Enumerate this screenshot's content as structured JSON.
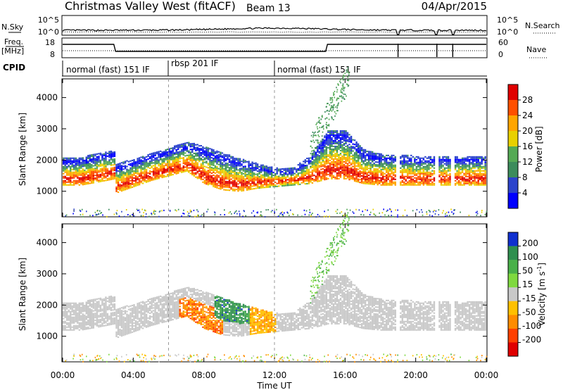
{
  "header": {
    "title": "Christmas Valley West (fitACF)",
    "beam": "Beam 13",
    "date": "04/Apr/2015"
  },
  "strips": {
    "nsky_label": "N.Sky",
    "nsky_ticks": [
      "10^5",
      "10^0"
    ],
    "nsearch_label": "N.Search",
    "nsearch_ticks": [
      "10^5",
      "10^0"
    ],
    "freq_label": "Freq.",
    "freq_unit": "[MHz]",
    "freq_ticks": [
      "18",
      "8"
    ],
    "nave_label": "Nave",
    "nave_ticks": [
      "60",
      "0"
    ],
    "cpid_label": "CPID",
    "cpid_segments": [
      {
        "label": "normal (fast) 151 IF",
        "start_h": 0,
        "end_h": 6
      },
      {
        "label": "rbsp 201 IF",
        "start_h": 6,
        "end_h": 12
      },
      {
        "label": "normal (fast) 151 IF",
        "start_h": 12,
        "end_h": 24
      }
    ]
  },
  "chart_data": [
    {
      "type": "heatmap",
      "quantity": "power",
      "xlabel": "Time UT",
      "ylabel": "Slant Range [km]",
      "xlim": [
        0,
        24
      ],
      "ylim": [
        180,
        4600
      ],
      "x_ticks": [
        "00:00",
        "04:00",
        "08:00",
        "12:00",
        "16:00",
        "20:00",
        "00:00"
      ],
      "y_ticks": [
        1000,
        2000,
        3000,
        4000
      ],
      "colorbar": {
        "label": "Power [dB]",
        "ticks": [
          4,
          8,
          12,
          16,
          20,
          24,
          28
        ],
        "colors": [
          "#0000ff",
          "#2c44cc",
          "#3c8c5c",
          "#55aa55",
          "#e8d000",
          "#ffa500",
          "#ff5000",
          "#e00000"
        ]
      },
      "echo_band": [
        {
          "t": 0.0,
          "lo": 1300,
          "hi": 1950
        },
        {
          "t": 1.0,
          "lo": 1300,
          "hi": 1950
        },
        {
          "t": 2.0,
          "lo": 1400,
          "hi": 2100
        },
        {
          "t": 2.9,
          "lo": 1500,
          "hi": 2200
        },
        {
          "t": 3.0,
          "lo": 1050,
          "hi": 1750
        },
        {
          "t": 4.0,
          "lo": 1250,
          "hi": 1900
        },
        {
          "t": 5.0,
          "lo": 1450,
          "hi": 2100
        },
        {
          "t": 6.0,
          "lo": 1600,
          "hi": 2250
        },
        {
          "t": 7.0,
          "lo": 1750,
          "hi": 2450
        },
        {
          "t": 8.0,
          "lo": 1350,
          "hi": 2300
        },
        {
          "t": 9.0,
          "lo": 1150,
          "hi": 2100
        },
        {
          "t": 10.0,
          "lo": 1100,
          "hi": 1900
        },
        {
          "t": 11.0,
          "lo": 1200,
          "hi": 1750
        },
        {
          "t": 12.0,
          "lo": 1250,
          "hi": 1600
        },
        {
          "t": 13.0,
          "lo": 1300,
          "hi": 1600
        },
        {
          "t": 14.0,
          "lo": 1350,
          "hi": 2000
        },
        {
          "t": 15.0,
          "lo": 1500,
          "hi": 2800
        },
        {
          "t": 16.0,
          "lo": 1500,
          "hi": 2800
        },
        {
          "t": 17.0,
          "lo": 1350,
          "hi": 2200
        },
        {
          "t": 18.0,
          "lo": 1300,
          "hi": 2050
        },
        {
          "t": 20.0,
          "lo": 1300,
          "hi": 2000
        },
        {
          "t": 22.0,
          "lo": 1300,
          "hi": 2000
        },
        {
          "t": 24.0,
          "lo": 1300,
          "hi": 2000
        }
      ]
    },
    {
      "type": "heatmap",
      "quantity": "velocity",
      "xlabel": "Time UT",
      "ylabel": "Slant Range [km]",
      "xlim": [
        0,
        24
      ],
      "ylim": [
        180,
        4600
      ],
      "x_ticks": [
        "00:00",
        "04:00",
        "08:00",
        "12:00",
        "16:00",
        "20:00",
        "00:00"
      ],
      "y_ticks": [
        1000,
        2000,
        3000,
        4000
      ],
      "colorbar": {
        "label": "Velocity [m s",
        "label_sup": "-1",
        "label_end": "]",
        "ticks": [
          200,
          100,
          50,
          15,
          -15,
          -50,
          -100,
          -200
        ],
        "colors": [
          "#1030d0",
          "#2f8f4f",
          "#49b049",
          "#7fd93f",
          "#c8c8c8",
          "#ffc000",
          "#ff8c00",
          "#ff4000",
          "#e00000"
        ]
      }
    }
  ]
}
